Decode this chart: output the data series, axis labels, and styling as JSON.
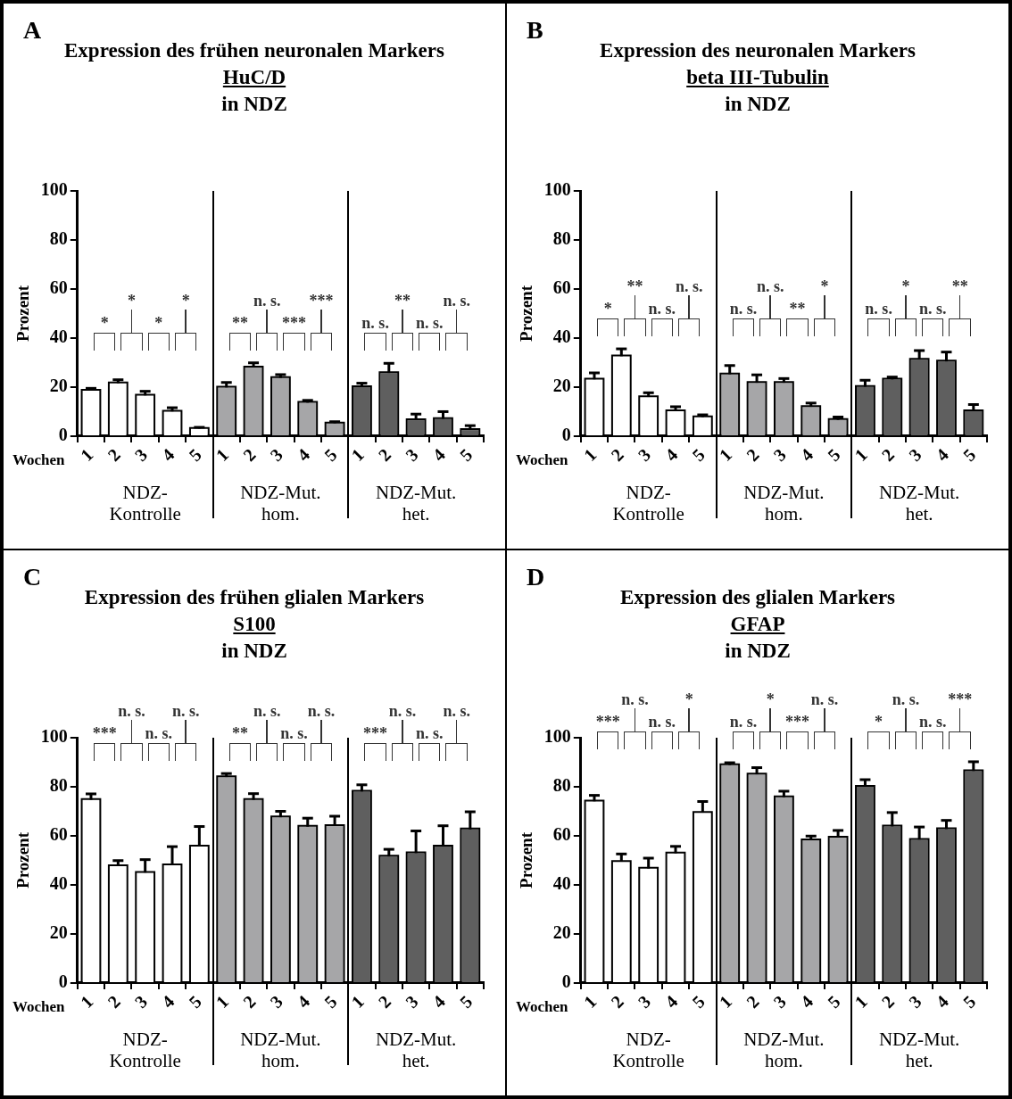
{
  "chart_data": [
    {
      "type": "bar",
      "title": "Expression des frühen neuronalen Markers\nHuC/D\nin NDZ",
      "xlabel": "Wochen",
      "ylabel": "Prozent",
      "categories": [
        "1",
        "2",
        "3",
        "4",
        "5",
        "1",
        "2",
        "3",
        "4",
        "5",
        "1",
        "2",
        "3",
        "4",
        "5"
      ],
      "values": [
        18.5,
        21.5,
        16.5,
        10,
        3,
        19.8,
        28,
        23.7,
        13.6,
        5.2,
        20,
        25.7,
        6.5,
        7,
        2.5
      ],
      "errors": [
        1,
        1.5,
        1.8,
        1.6,
        0.6,
        2.1,
        1.9,
        1.4,
        1,
        0.7,
        1.6,
        4,
        2.5,
        3,
        1.8
      ],
      "colors": [
        "#ffffff",
        "#ffffff",
        "#ffffff",
        "#ffffff",
        "#ffffff",
        "#a6a6a8",
        "#a6a6a8",
        "#a6a6a8",
        "#a6a6a8",
        "#a6a6a8",
        "#5f5f5f",
        "#5f5f5f",
        "#5f5f5f",
        "#5f5f5f",
        "#5f5f5f"
      ],
      "ylim": [
        0,
        100
      ],
      "yticks": [
        0,
        20,
        40,
        60,
        80,
        100
      ],
      "annotations": [
        "A",
        "NDZ-\nKontrolle",
        "NDZ-Mut.\nhom.",
        "NDZ-Mut.\nhet.",
        "*",
        "*",
        "*",
        "*",
        "**",
        "n. s.",
        "***",
        "***",
        "n. s.",
        "**",
        "n. s.",
        "n. s."
      ]
    },
    {
      "type": "bar",
      "title": "Expression des neuronalen Markers\nbeta III-Tubulin\nin NDZ",
      "xlabel": "Wochen",
      "ylabel": "Prozent",
      "categories": [
        "1",
        "2",
        "3",
        "4",
        "5",
        "1",
        "2",
        "3",
        "4",
        "5",
        "1",
        "2",
        "3",
        "4",
        "5"
      ],
      "values": [
        23.1,
        32.5,
        15.9,
        10.2,
        7.7,
        25.2,
        21.7,
        21.7,
        11.9,
        6.6,
        20.1,
        23.1,
        31.2,
        30.4,
        10.2
      ],
      "errors": [
        2.7,
        3.1,
        1.8,
        1.8,
        1,
        3.6,
        3.3,
        1.8,
        1.6,
        1.2,
        2.7,
        1,
        3.7,
        3.9,
        2.7
      ],
      "colors": [
        "#ffffff",
        "#ffffff",
        "#ffffff",
        "#ffffff",
        "#ffffff",
        "#a6a6a8",
        "#a6a6a8",
        "#a6a6a8",
        "#a6a6a8",
        "#a6a6a8",
        "#5f5f5f",
        "#5f5f5f",
        "#5f5f5f",
        "#5f5f5f",
        "#5f5f5f"
      ],
      "ylim": [
        0,
        100
      ],
      "yticks": [
        0,
        20,
        40,
        60,
        80,
        100
      ],
      "annotations": [
        "B",
        "NDZ-\nKontrolle",
        "NDZ-Mut.\nhom.",
        "NDZ-Mut.\nhet.",
        "*",
        "**",
        "n. s.",
        "n. s.",
        "n. s.",
        "n. s.",
        "**",
        "*",
        "n. s.",
        "*",
        "n. s.",
        "**"
      ]
    },
    {
      "type": "bar",
      "title": "Expression des frühen glialen Markers\nS100\nin NDZ",
      "xlabel": "Wochen",
      "ylabel": "Prozent",
      "categories": [
        "1",
        "2",
        "3",
        "4",
        "5",
        "1",
        "2",
        "3",
        "4",
        "5",
        "1",
        "2",
        "3",
        "4",
        "5"
      ],
      "values": [
        74.6,
        47.6,
        44.9,
        48,
        55.6,
        83.9,
        74.6,
        67.5,
        63.7,
        64,
        78,
        51.5,
        52.9,
        55.6,
        62.6
      ],
      "errors": [
        2.5,
        2.3,
        5.4,
        7.6,
        8.2,
        1.5,
        2.6,
        2.5,
        3.5,
        4,
        2.8,
        3,
        9.1,
        8.5,
        7.2
      ],
      "colors": [
        "#ffffff",
        "#ffffff",
        "#ffffff",
        "#ffffff",
        "#ffffff",
        "#a6a6a8",
        "#a6a6a8",
        "#a6a6a8",
        "#a6a6a8",
        "#a6a6a8",
        "#5f5f5f",
        "#5f5f5f",
        "#5f5f5f",
        "#5f5f5f",
        "#5f5f5f"
      ],
      "ylim": [
        0,
        100
      ],
      "yticks": [
        0,
        20,
        40,
        60,
        80,
        100
      ],
      "annotations": [
        "C",
        "NDZ-\nKontrolle",
        "NDZ-Mut.\nhom.",
        "NDZ-Mut.\nhet.",
        "***",
        "n. s.",
        "n. s.",
        "n. s.",
        "**",
        "n. s.",
        "n. s.",
        "n. s.",
        "***",
        "n. s.",
        "n. s.",
        "n. s."
      ]
    },
    {
      "type": "bar",
      "title": "Expression des glialen Markers\nGFAP\nin NDZ",
      "xlabel": "Wochen",
      "ylabel": "Prozent",
      "categories": [
        "1",
        "2",
        "3",
        "4",
        "5",
        "1",
        "2",
        "3",
        "4",
        "5",
        "1",
        "2",
        "3",
        "4",
        "5"
      ],
      "values": [
        74,
        49.4,
        46.6,
        52.8,
        69.4,
        88.8,
        85,
        75.7,
        58.2,
        59.3,
        80,
        63.8,
        58.4,
        62.7,
        86.4
      ],
      "errors": [
        2.5,
        3.2,
        4.3,
        2.9,
        4.6,
        1,
        2.8,
        2.5,
        1.7,
        2.9,
        2.9,
        5.7,
        5.2,
        3.6,
        3.8
      ],
      "colors": [
        "#ffffff",
        "#ffffff",
        "#ffffff",
        "#ffffff",
        "#ffffff",
        "#a6a6a8",
        "#a6a6a8",
        "#a6a6a8",
        "#a6a6a8",
        "#a6a6a8",
        "#5f5f5f",
        "#5f5f5f",
        "#5f5f5f",
        "#5f5f5f",
        "#5f5f5f"
      ],
      "ylim": [
        0,
        100
      ],
      "yticks": [
        0,
        20,
        40,
        60,
        80,
        100
      ],
      "annotations": [
        "D",
        "NDZ-\nKontrolle",
        "NDZ-Mut.\nhom.",
        "NDZ-Mut.\nhet.",
        "***",
        "n. s.",
        "n. s.",
        "*",
        "n. s.",
        "*",
        "***",
        "n. s.",
        "*",
        "n. s.",
        "n. s.",
        "***"
      ]
    }
  ]
}
